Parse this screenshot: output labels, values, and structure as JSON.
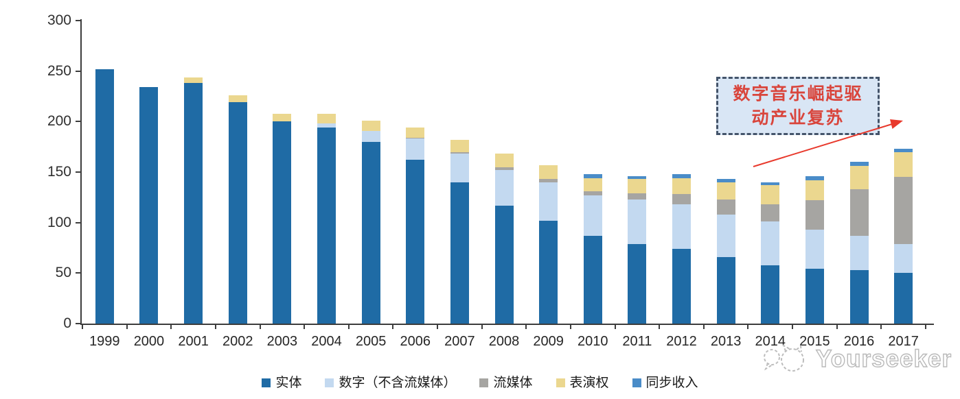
{
  "chart_data": {
    "type": "bar",
    "stacked": true,
    "title": "",
    "xlabel": "",
    "ylabel": "",
    "ylim": [
      0,
      300
    ],
    "yticks": [
      0,
      50,
      100,
      150,
      200,
      250,
      300
    ],
    "grid": false,
    "legend_position": "bottom",
    "categories": [
      "1999",
      "2000",
      "2001",
      "2002",
      "2003",
      "2004",
      "2005",
      "2006",
      "2007",
      "2008",
      "2009",
      "2010",
      "2011",
      "2012",
      "2013",
      "2014",
      "2015",
      "2016",
      "2017"
    ],
    "series": [
      {
        "name": "实体",
        "color": "#1f6ba5",
        "values": [
          252,
          234,
          238,
          219,
          200,
          194,
          180,
          162,
          140,
          117,
          102,
          87,
          79,
          74,
          66,
          58,
          54,
          53,
          50
        ]
      },
      {
        "name": "数字（不含流媒体）",
        "color": "#c3d9f0",
        "values": [
          0,
          0,
          0,
          0,
          0,
          4,
          11,
          21,
          28,
          35,
          38,
          40,
          44,
          44,
          42,
          43,
          39,
          34,
          29
        ]
      },
      {
        "name": "流媒体",
        "color": "#a6a5a2",
        "values": [
          0,
          0,
          0,
          0,
          0,
          0,
          0,
          1,
          2,
          3,
          3,
          4,
          6,
          10,
          15,
          17,
          29,
          46,
          66
        ]
      },
      {
        "name": "表演权",
        "color": "#ebd78f",
        "values": [
          0,
          0,
          6,
          7,
          8,
          10,
          10,
          10,
          12,
          13,
          14,
          13,
          14,
          16,
          17,
          19,
          20,
          23,
          25
        ]
      },
      {
        "name": "同步收入",
        "color": "#4a8cc8",
        "values": [
          0,
          0,
          0,
          0,
          0,
          0,
          0,
          0,
          0,
          0,
          0,
          4,
          3,
          4,
          3,
          3,
          4,
          4,
          3
        ]
      }
    ]
  },
  "annotation": {
    "line1": "数字音乐崛起驱",
    "line2": "动产业复苏",
    "text_color": "#d9453c",
    "border_color": "#44546a",
    "bg_color": "#d9e6f5",
    "arrow_color": "#e8392c",
    "arrow_icon": "arrow-right-up-icon"
  },
  "watermark": {
    "text": "Yourseeker",
    "logo_icon": "speech-bubbles-icon"
  }
}
